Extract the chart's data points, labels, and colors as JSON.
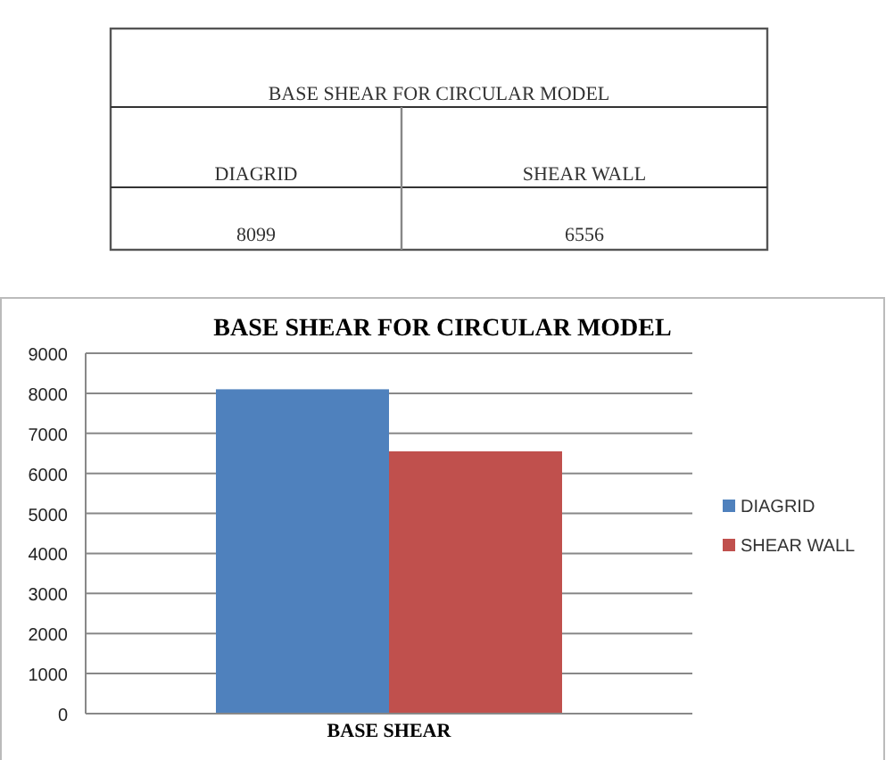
{
  "chart_data": [
    {
      "type": "other",
      "title": "BASE SHEAR FOR CIRCULAR MODEL",
      "annotations": [
        "DIAGRID",
        "SHEAR WALL",
        "8099",
        "6556"
      ]
    },
    {
      "type": "bar",
      "title": "BASE SHEAR FOR CIRCULAR MODEL",
      "categories": [
        "BASE SHEAR"
      ],
      "series": [
        {
          "name": "DIAGRID",
          "color": "#4f81bd",
          "values": [
            8100
          ]
        },
        {
          "name": "SHEAR WALL",
          "color": "#c0504d",
          "values": [
            6550
          ]
        }
      ],
      "ylim": [
        0,
        9000
      ],
      "yticks": [
        0,
        1000,
        2000,
        3000,
        4000,
        5000,
        6000,
        7000,
        8000,
        9000
      ],
      "grid": "y",
      "legend": "right"
    }
  ]
}
